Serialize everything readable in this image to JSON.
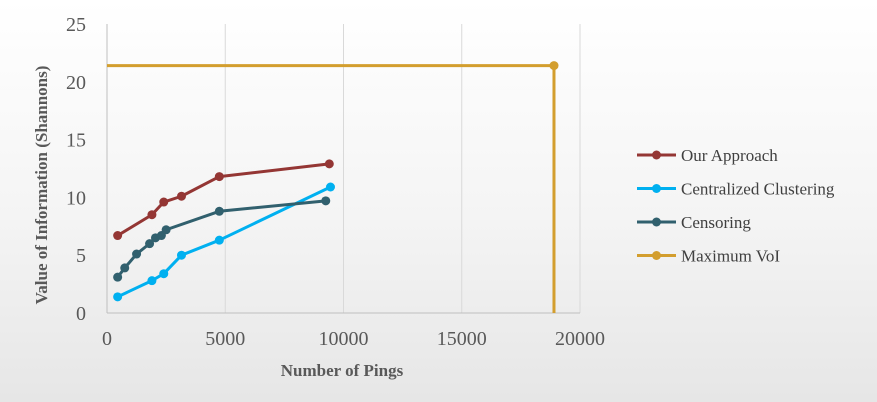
{
  "chart_data": {
    "type": "line",
    "title": "",
    "xlabel": "Number of Pings",
    "ylabel": "Value of Information (Shannons)",
    "xlim": [
      0,
      20000
    ],
    "ylim": [
      0,
      25
    ],
    "x_ticks": [
      0,
      5000,
      10000,
      15000,
      20000
    ],
    "y_ticks": [
      0,
      5,
      10,
      15,
      20,
      25
    ],
    "grid": "vertical",
    "legend_position": "right",
    "series": [
      {
        "name": "Our Approach",
        "color": "#943634",
        "points": [
          [
            450,
            6.7
          ],
          [
            1900,
            8.5
          ],
          [
            2400,
            9.6
          ],
          [
            3150,
            10.1
          ],
          [
            4750,
            11.8
          ],
          [
            9400,
            12.9
          ]
        ]
      },
      {
        "name": "Centralized Clustering",
        "color": "#00b0f0",
        "points": [
          [
            450,
            1.4
          ],
          [
            1900,
            2.8
          ],
          [
            2400,
            3.4
          ],
          [
            3150,
            5.0
          ],
          [
            4750,
            6.3
          ],
          [
            9450,
            10.9
          ]
        ]
      },
      {
        "name": "Censoring",
        "color": "#31606e",
        "points": [
          [
            450,
            3.1
          ],
          [
            750,
            3.9
          ],
          [
            1250,
            5.1
          ],
          [
            1800,
            6.0
          ],
          [
            2050,
            6.5
          ],
          [
            2300,
            6.7
          ],
          [
            2500,
            7.2
          ],
          [
            4750,
            8.8
          ],
          [
            9250,
            9.7
          ]
        ]
      },
      {
        "name": "Maximum VoI",
        "color": "#d39e2e",
        "points": [
          [
            0,
            21.4
          ],
          [
            18900,
            21.4
          ],
          [
            18900,
            0
          ]
        ],
        "markers": [
          [
            18900,
            21.4
          ]
        ]
      }
    ]
  }
}
